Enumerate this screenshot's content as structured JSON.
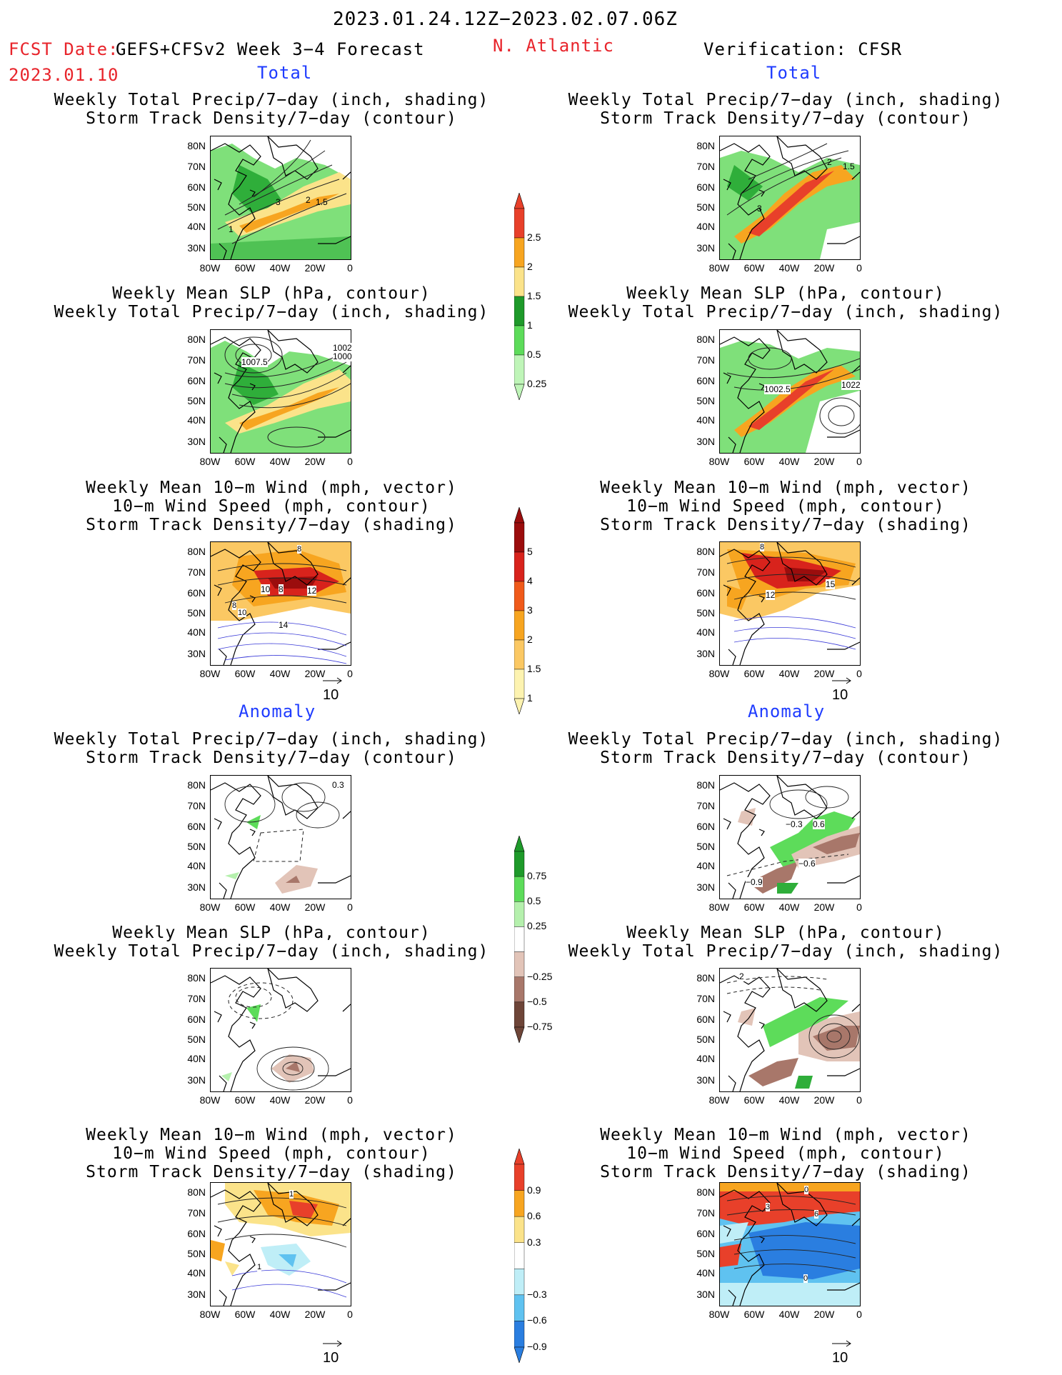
{
  "header": {
    "period": "2023.01.24.12Z−2023.02.07.06Z",
    "fcst_label": "FCST Date:",
    "fcst_date": "2023.01.10",
    "model": "GEFS+CFSv2 Week 3−4 Forecast",
    "region": "N. Atlantic",
    "verification": "Verification: CFSR"
  },
  "section_labels": {
    "total": "Total",
    "anomaly": "Anomaly"
  },
  "titles": {
    "precip_storm": [
      "Weekly Total Precip/7−day (inch, shading)",
      "Storm Track Density/7−day (contour)"
    ],
    "slp_precip": [
      "Weekly Mean SLP (hPa, contour)",
      "Weekly Total Precip/7−day (inch, shading)"
    ],
    "wind_storm": [
      "Weekly Mean 10−m Wind (mph, vector)",
      "10−m Wind Speed (mph, contour)",
      "Storm Track Density/7−day (shading)"
    ]
  },
  "axes": {
    "lat_labels": [
      "80N",
      "70N",
      "60N",
      "50N",
      "40N",
      "30N"
    ],
    "lon_labels": [
      "80W",
      "60W",
      "40W",
      "20W",
      "0"
    ]
  },
  "vector_ref": "10",
  "colorbars": {
    "precip_total": {
      "labels": [
        "2.5",
        "2",
        "1.5",
        "1",
        "0.5",
        "0.25"
      ],
      "colors": [
        "#e8402a",
        "#f7a520",
        "#fbe38a",
        "#1e9a2a",
        "#5ddc5a",
        "#bff5b8"
      ]
    },
    "storm_total": {
      "labels": [
        "5",
        "4",
        "3",
        "2",
        "1.5",
        "1"
      ],
      "colors": [
        "#9b0d0d",
        "#d8231c",
        "#f05a1a",
        "#f7a520",
        "#fbc863",
        "#fdf3b0"
      ]
    },
    "precip_anom": {
      "labels": [
        "0.75",
        "0.5",
        "0.25",
        "−0.25",
        "−0.5",
        "−0.75"
      ],
      "colors": [
        "#1e9a2a",
        "#5ddc5a",
        "#b5f0ad",
        "#ffffff",
        "#e2c4b8",
        "#a8776a",
        "#6e4538"
      ]
    },
    "storm_anom": {
      "labels": [
        "0.9",
        "0.6",
        "0.3",
        "−0.3",
        "−0.6",
        "−0.9"
      ],
      "colors": [
        "#e8402a",
        "#f7a520",
        "#fbe38a",
        "#ffffff",
        "#bfeef7",
        "#5fc2f0",
        "#2a7ee0"
      ]
    }
  },
  "panels": {
    "fcst_total_precip_storm": [
      "3",
      "2",
      "1.5",
      "1"
    ],
    "fcst_total_slp": [
      "1007.5",
      "1002",
      "1000"
    ],
    "fcst_total_wind": [
      "8",
      "10",
      "8",
      "12",
      "14",
      "8",
      "10"
    ],
    "ver_total_precip_storm": [
      "2",
      "1.5",
      "3"
    ],
    "ver_total_slp": [
      "1002.5",
      "1022"
    ],
    "ver_total_wind": [
      "8",
      "12",
      "15"
    ],
    "fcst_anom_precip_storm": [
      "0.3"
    ],
    "ver_anom_precip_storm": [
      "−0.3",
      "0.6",
      "−0.6",
      "−0.9"
    ],
    "ver_anom_slp": [
      "2"
    ],
    "fcst_anom_wind": [
      "1",
      "1"
    ],
    "ver_anom_wind": [
      "0",
      "3",
      "6",
      "0"
    ]
  }
}
